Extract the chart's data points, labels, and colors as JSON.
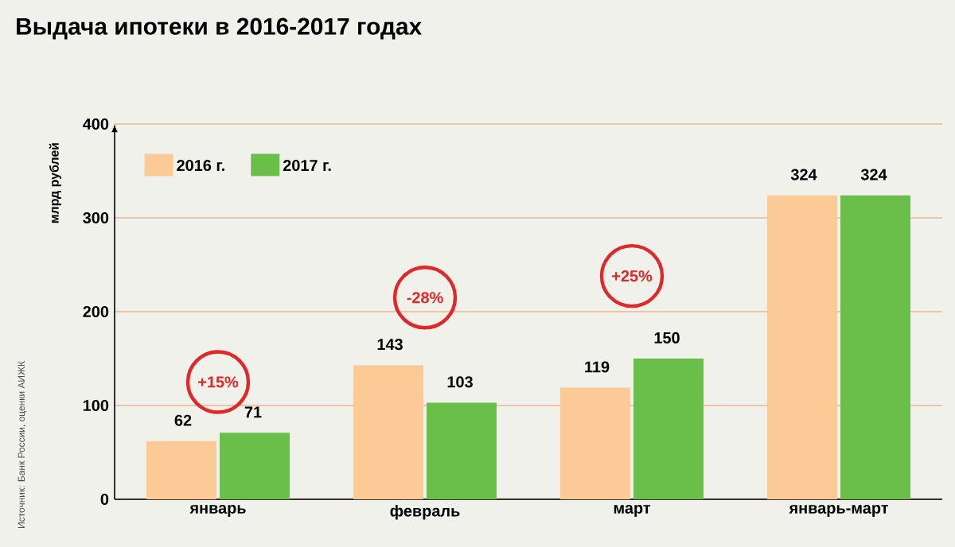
{
  "chart_data": {
    "type": "bar",
    "title": "Выдача ипотеки в 2016-2017 годах",
    "ylabel": "млрд рублей",
    "categories": [
      "январь",
      "февраль",
      "март",
      "январь-март"
    ],
    "series": [
      {
        "name": "2016 г.",
        "color": "#fcca96",
        "values": [
          62,
          143,
          119,
          324
        ]
      },
      {
        "name": "2017 г.",
        "color": "#6abf4b",
        "values": [
          71,
          103,
          150,
          324
        ]
      }
    ],
    "ylim": [
      0,
      400
    ],
    "yticks": [
      0,
      100,
      200,
      300,
      400
    ],
    "grid": "y",
    "legend": "top left",
    "data_labels": true,
    "annotations": [
      {
        "text": "+15%",
        "x": "январь",
        "y": 125
      },
      {
        "text": "-28%",
        "x": "февраль",
        "y": 215
      },
      {
        "text": "+25%",
        "x": "март",
        "y": 238
      },
      "Источник: Банк России, оценки АИЖК"
    ]
  }
}
